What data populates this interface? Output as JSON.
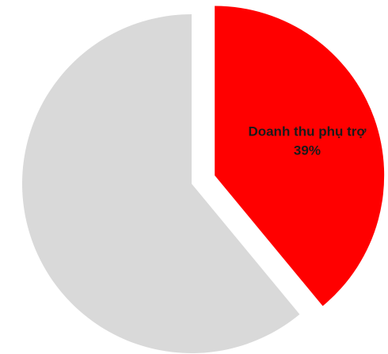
{
  "chart_data": {
    "type": "pie",
    "slices": [
      {
        "label": "Doanh thu phụ trợ",
        "value": 39,
        "value_text": "39%",
        "color": "#ff0000",
        "exploded": true
      },
      {
        "label": "",
        "value": 61,
        "value_text": "",
        "color": "#d9d9d9",
        "exploded": false
      }
    ],
    "title": "",
    "legend": "none"
  }
}
